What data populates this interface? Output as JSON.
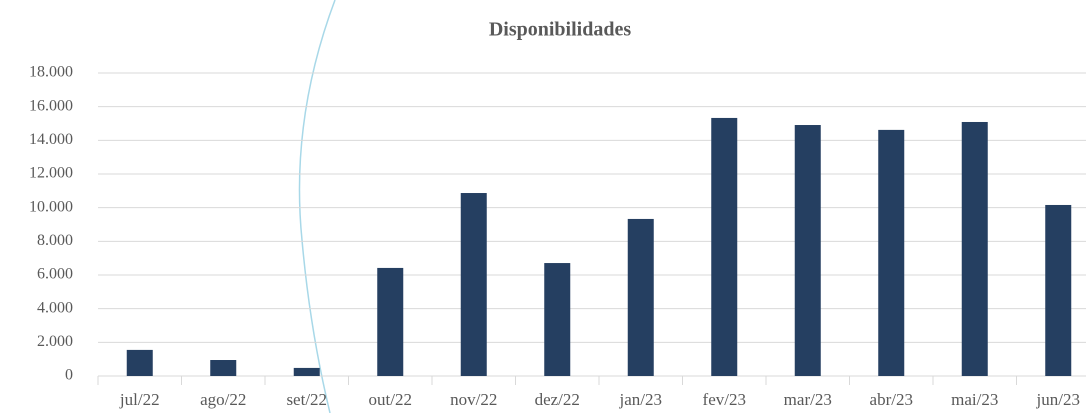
{
  "chart_data": {
    "type": "bar",
    "title": "Disponibilidades",
    "categories": [
      "jul/22",
      "ago/22",
      "set/22",
      "out/22",
      "nov/22",
      "dez/22",
      "jan/23",
      "fev/23",
      "mar/23",
      "abr/23",
      "mai/23",
      "jun/23"
    ],
    "values": [
      1550,
      950,
      480,
      6420,
      10870,
      6710,
      9330,
      15330,
      14910,
      14620,
      15090,
      10160
    ],
    "color": "#253f61",
    "ylim": [
      0,
      18000
    ],
    "yticks": [
      0,
      {
        "value": 2000,
        "label": "2.000"
      },
      {
        "value": 4000,
        "label": "4.000"
      },
      {
        "value": 6000,
        "label": "6.000"
      },
      {
        "value": 8000,
        "label": "8.000"
      },
      {
        "value": 10000,
        "label": "10.000"
      },
      {
        "value": 12000,
        "label": "12.000"
      },
      {
        "value": 14000,
        "label": "14.000"
      },
      {
        "value": 16000,
        "label": "16.000"
      },
      {
        "value": 18000,
        "label": "18.000"
      }
    ],
    "grid": true
  }
}
